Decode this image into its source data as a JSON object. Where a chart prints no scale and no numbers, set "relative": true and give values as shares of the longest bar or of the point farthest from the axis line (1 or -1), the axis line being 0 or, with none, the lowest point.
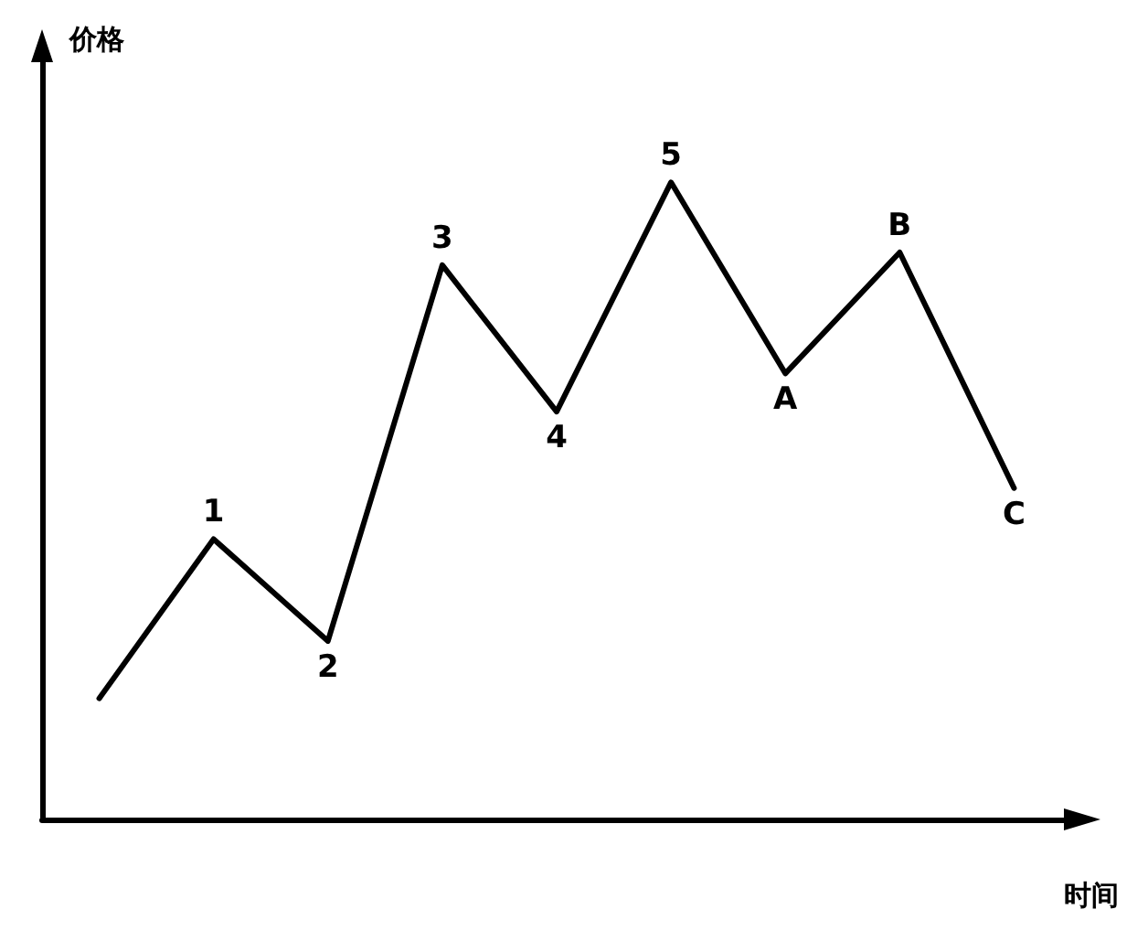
{
  "chart_data": {
    "type": "line",
    "xlabel": "时间",
    "ylabel": "价格",
    "relative": true,
    "categories": [
      null,
      null,
      null,
      null,
      null,
      null,
      null,
      null,
      null
    ],
    "series": [
      {
        "color": "#000000",
        "values": [
          0.19,
          0.44,
          0.28,
          0.87,
          0.64,
          1,
          0.7,
          0.89,
          0.52
        ]
      }
    ],
    "annotations": [
      {
        "text": "1",
        "y": 0.44
      },
      {
        "text": "2",
        "y": 0.28
      },
      {
        "text": "3",
        "y": 0.87
      },
      {
        "text": "4",
        "y": 0.64
      },
      {
        "text": "5",
        "y": 1
      },
      {
        "text": "A",
        "y": 0.7
      },
      {
        "text": "B",
        "y": 0.89
      },
      {
        "text": "C",
        "y": 0.52
      }
    ],
    "grid": false,
    "marker": "none",
    "line_style": "solid"
  }
}
